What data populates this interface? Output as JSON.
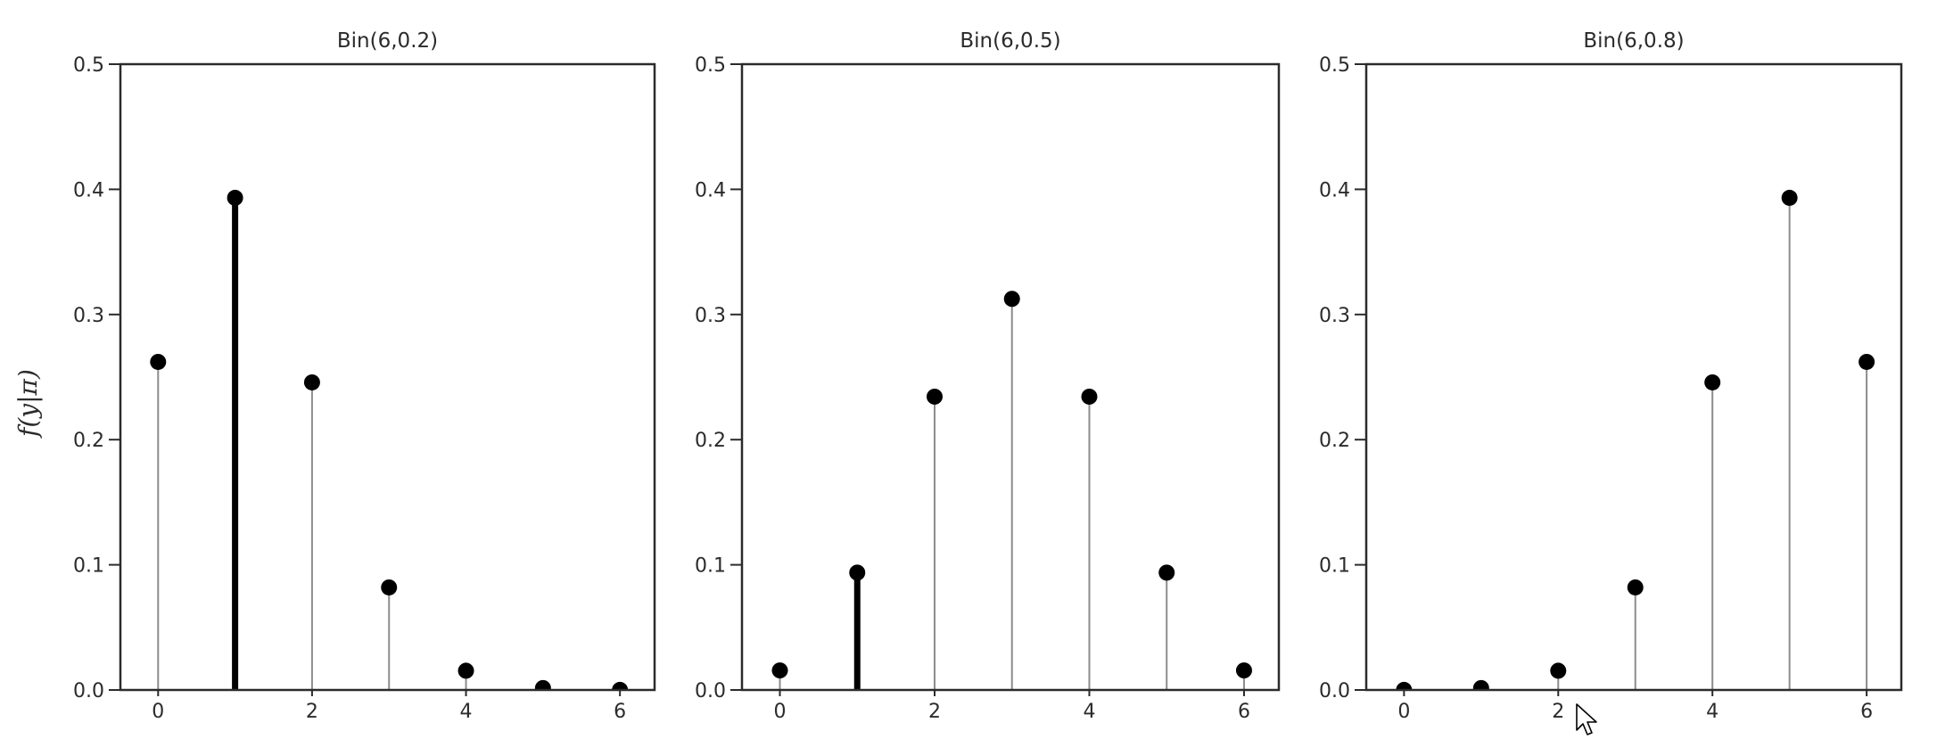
{
  "figure": {
    "ylabel": "f(y|π)",
    "colors": {
      "spine": "#2b2b2b",
      "marker": "#000000",
      "stem": "#8c8c8c",
      "highlight_stem": "#000000",
      "text": "#2b2b2b",
      "background": "#ffffff"
    }
  },
  "chart_data": [
    {
      "type": "stem",
      "title": "Bin(6,0.2)",
      "xlabel": "",
      "ylabel": "f(y|π)",
      "x": [
        0,
        1,
        2,
        3,
        4,
        5,
        6
      ],
      "values": [
        0.262144,
        0.393216,
        0.24576,
        0.08192,
        0.01536,
        0.001536,
        6.4e-05
      ],
      "highlight_x": 1,
      "xticks": [
        "0",
        "2",
        "4",
        "6"
      ],
      "xtick_values": [
        0,
        2,
        4,
        6
      ],
      "yticks": [
        "0.0",
        "0.1",
        "0.2",
        "0.3",
        "0.4",
        "0.5"
      ],
      "ytick_values": [
        0.0,
        0.1,
        0.2,
        0.3,
        0.4,
        0.5
      ],
      "ylim": [
        0,
        0.5
      ],
      "xlim": [
        -0.49,
        6.45
      ],
      "grid": false,
      "legend": null
    },
    {
      "type": "stem",
      "title": "Bin(6,0.5)",
      "xlabel": "",
      "ylabel": "",
      "x": [
        0,
        1,
        2,
        3,
        4,
        5,
        6
      ],
      "values": [
        0.015625,
        0.09375,
        0.234375,
        0.3125,
        0.234375,
        0.09375,
        0.015625
      ],
      "highlight_x": 1,
      "xticks": [
        "0",
        "2",
        "4",
        "6"
      ],
      "xtick_values": [
        0,
        2,
        4,
        6
      ],
      "yticks": [
        "0.0",
        "0.1",
        "0.2",
        "0.3",
        "0.4",
        "0.5"
      ],
      "ytick_values": [
        0.0,
        0.1,
        0.2,
        0.3,
        0.4,
        0.5
      ],
      "ylim": [
        0,
        0.5
      ],
      "xlim": [
        -0.49,
        6.45
      ],
      "grid": false,
      "legend": null
    },
    {
      "type": "stem",
      "title": "Bin(6,0.8)",
      "xlabel": "",
      "ylabel": "",
      "x": [
        0,
        1,
        2,
        3,
        4,
        5,
        6
      ],
      "values": [
        6.4e-05,
        0.001536,
        0.01536,
        0.08192,
        0.24576,
        0.393216,
        0.262144
      ],
      "highlight_x": 1,
      "xticks": [
        "0",
        "2",
        "4",
        "6"
      ],
      "xtick_values": [
        0,
        2,
        4,
        6
      ],
      "yticks": [
        "0.0",
        "0.1",
        "0.2",
        "0.3",
        "0.4",
        "0.5"
      ],
      "ytick_values": [
        0.0,
        0.1,
        0.2,
        0.3,
        0.4,
        0.5
      ],
      "ylim": [
        0,
        0.5
      ],
      "xlim": [
        -0.49,
        6.45
      ],
      "grid": false,
      "legend": null
    }
  ]
}
